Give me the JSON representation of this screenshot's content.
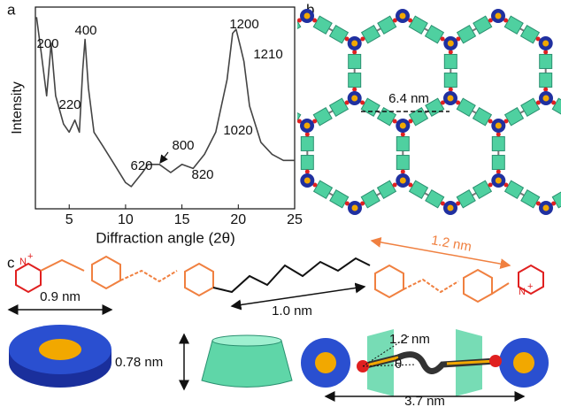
{
  "panel_labels": [
    "a",
    "b",
    "c"
  ],
  "chart_data": {
    "type": "line",
    "xlabel": "Diffraction angle (2θ)",
    "ylabel": "Intensity",
    "x": [
      2.1,
      2.5,
      3.0,
      3.4,
      3.8,
      4.5,
      5.0,
      5.5,
      5.9,
      6.2,
      6.4,
      6.7,
      7.2,
      8,
      9,
      10,
      10.5,
      11.5,
      12,
      13,
      14,
      15,
      16,
      17,
      18,
      18.5,
      19.0,
      19.5,
      19.8,
      20.2,
      20.5,
      21,
      22,
      23,
      24,
      25
    ],
    "values": [
      95,
      78,
      56,
      82,
      56,
      42,
      38,
      44,
      38,
      69,
      84,
      60,
      38,
      31,
      22,
      13,
      11,
      18,
      22,
      22,
      18,
      22,
      20,
      27,
      38,
      51,
      64,
      87,
      89,
      80,
      73,
      51,
      33,
      27,
      24,
      24
    ],
    "color": "#444444",
    "xlim": [
      2,
      25
    ],
    "xticks": [
      5,
      10,
      15,
      20,
      25
    ],
    "ylim": [
      0,
      100
    ],
    "annotations": [
      "200",
      "220",
      "400",
      "620",
      "800",
      "820",
      "1020",
      "1200",
      "1210"
    ]
  },
  "network": {
    "pore_distance": "6.4 nm"
  },
  "molecule": {
    "azo_length": "1.2 nm",
    "linker_length": "1.0 nm",
    "atom": "N",
    "charge": "+"
  },
  "components": {
    "macrocycle_diameter": "0.9 nm",
    "ring_height": "0.78 nm",
    "arm_length": "1.2 nm",
    "angle": "θ",
    "total_length": "3.7 nm"
  }
}
